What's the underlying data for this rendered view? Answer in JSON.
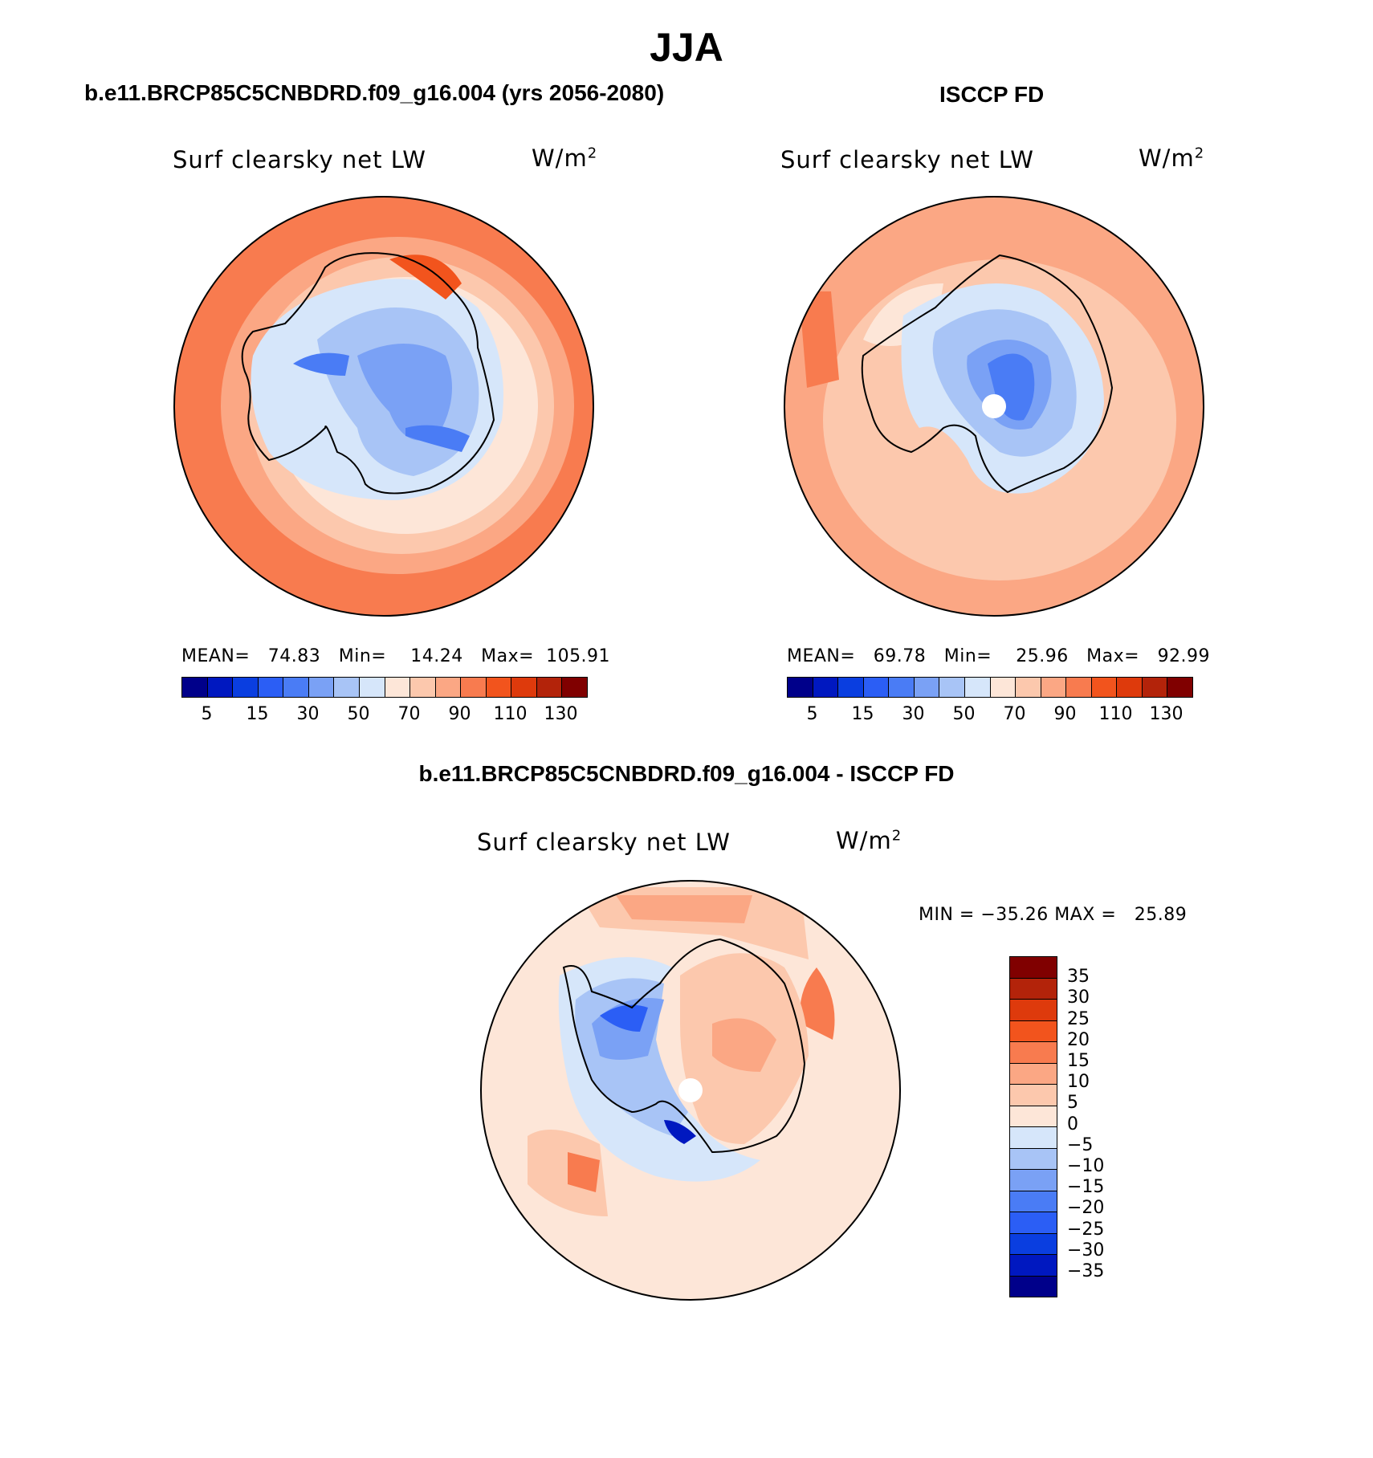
{
  "title": "JJA",
  "panels": {
    "left": {
      "case_title": "b.e11.BRCP85C5CNBDRD.f09_g16.004 (yrs 2056-2080)",
      "variable": "Surf clearsky net LW",
      "units": "W/m",
      "units_sup": "2",
      "stats": "MEAN=   74.83   Min=    14.24   Max=  105.91",
      "colorbar_ticks": [
        "5",
        "15",
        "30",
        "50",
        "70",
        "90",
        "110",
        "130"
      ]
    },
    "right": {
      "case_title": "ISCCP FD",
      "variable": "Surf clearsky net LW",
      "units": "W/m",
      "units_sup": "2",
      "stats": "MEAN=   69.78   Min=    25.96   Max=   92.99",
      "colorbar_ticks": [
        "5",
        "15",
        "30",
        "50",
        "70",
        "90",
        "110",
        "130"
      ]
    },
    "diff": {
      "case_title": "b.e11.BRCP85C5CNBDRD.f09_g16.004 - ISCCP FD",
      "variable": "Surf clearsky net LW",
      "units": "W/m",
      "units_sup": "2",
      "stats": "MIN = −35.26 MAX =   25.89",
      "colorbar_ticks": [
        "35",
        "30",
        "25",
        "20",
        "15",
        "10",
        "5",
        "0",
        "−5",
        "−10",
        "−15",
        "−20",
        "−25",
        "−30",
        "−35"
      ]
    }
  },
  "colors": {
    "abs_scale": [
      "#00008a",
      "#0018c0",
      "#0a3ee0",
      "#2b5ef5",
      "#4a7cf5",
      "#7aa1f5",
      "#a8c4f6",
      "#d6e6fa",
      "#fde6d8",
      "#fcc8ad",
      "#fba784",
      "#f87b4f",
      "#f2541d",
      "#de3a0c",
      "#b3230a",
      "#800000"
    ],
    "diff_scale": [
      "#800000",
      "#b3230a",
      "#de3a0c",
      "#f2541d",
      "#f87b4f",
      "#fba784",
      "#fcc8ad",
      "#fde6d8",
      "#d6e6fa",
      "#a8c4f6",
      "#7aa1f5",
      "#4a7cf5",
      "#2b5ef5",
      "#0a3ee0",
      "#0018c0",
      "#00008a"
    ]
  }
}
